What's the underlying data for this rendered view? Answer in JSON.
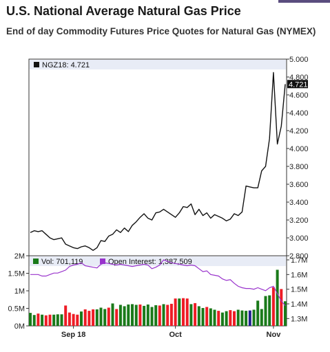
{
  "page": {
    "title": "U.S. National Average Natural Gas Price",
    "subtitle": "End of day Commodity Futures Price Quotes for Natural Gas (NYMEX)"
  },
  "colors": {
    "price_line": "#111111",
    "open_interest_line": "#9933cc",
    "volume_up": "#1a7a1a",
    "volume_down": "#ee1c25",
    "volume_neutral": "#1f1f8f",
    "last_price_badge": "#111111",
    "legend_band": "#e8ecf6",
    "corner_tab": "#5a4d7e"
  },
  "chart_data": [
    {
      "type": "line",
      "legend": "NGZ18: 4.721",
      "last_value_label": "4.721",
      "yaxis_ticks": [
        "5.000",
        "4.800",
        "4.600",
        "4.400",
        "4.200",
        "4.000",
        "3.800",
        "3.600",
        "3.400",
        "3.200",
        "3.000",
        "2.800"
      ],
      "ylim": [
        2.8,
        5.0
      ],
      "series": [
        {
          "values": [
            3.06,
            3.08,
            3.07,
            3.08,
            3.04,
            3.0,
            2.98,
            2.99,
            3.0,
            2.93,
            2.91,
            2.89,
            2.88,
            2.9,
            2.91,
            2.89,
            2.86,
            2.89,
            2.97,
            2.96,
            3.02,
            3.04,
            3.09,
            3.06,
            3.11,
            3.07,
            3.14,
            3.18,
            3.23,
            3.27,
            3.22,
            3.2,
            3.28,
            3.29,
            3.32,
            3.29,
            3.26,
            3.23,
            3.28,
            3.35,
            3.34,
            3.38,
            3.26,
            3.32,
            3.25,
            3.28,
            3.22,
            3.26,
            3.24,
            3.22,
            3.19,
            3.21,
            3.27,
            3.25,
            3.29,
            3.58,
            3.57,
            3.56,
            3.56,
            3.75,
            3.8,
            4.11,
            4.85,
            4.05,
            4.25,
            4.72
          ]
        }
      ]
    },
    {
      "type": "bar",
      "legend_volume": "Vol: 701,119",
      "legend_open_interest": "Open Interest: 1,387,509",
      "left_axis_ticks": [
        "2M",
        "1.5M",
        "1M",
        "0.5M",
        "0M"
      ],
      "right_axis_ticks": [
        "1.7M",
        "1.6M",
        "1.5M",
        "1.4M",
        "1.3M"
      ],
      "x_tick_labels": [
        "Sep 18",
        "Oct",
        "Nov"
      ],
      "volume_ylim": [
        0,
        2000000
      ],
      "open_interest_ylim": [
        1250000,
        1700000
      ],
      "volume": [
        [
          "up",
          370000
        ],
        [
          "up",
          310000
        ],
        [
          "down",
          350000
        ],
        [
          "up",
          320000
        ],
        [
          "down",
          300000
        ],
        [
          "down",
          320000
        ],
        [
          "up",
          320000
        ],
        [
          "up",
          330000
        ],
        [
          "up",
          330000
        ],
        [
          "down",
          580000
        ],
        [
          "down",
          380000
        ],
        [
          "down",
          340000
        ],
        [
          "down",
          320000
        ],
        [
          "up",
          410000
        ],
        [
          "down",
          470000
        ],
        [
          "down",
          430000
        ],
        [
          "down",
          470000
        ],
        [
          "up",
          470000
        ],
        [
          "up",
          520000
        ],
        [
          "up",
          480000
        ],
        [
          "down",
          520000
        ],
        [
          "up",
          640000
        ],
        [
          "down",
          480000
        ],
        [
          "up",
          600000
        ],
        [
          "up",
          560000
        ],
        [
          "up",
          610000
        ],
        [
          "up",
          620000
        ],
        [
          "up",
          600000
        ],
        [
          "down",
          610000
        ],
        [
          "up",
          570000
        ],
        [
          "up",
          610000
        ],
        [
          "up",
          540000
        ],
        [
          "up",
          590000
        ],
        [
          "down",
          580000
        ],
        [
          "up",
          620000
        ],
        [
          "down",
          600000
        ],
        [
          "down",
          630000
        ],
        [
          "down",
          780000
        ],
        [
          "up",
          780000
        ],
        [
          "down",
          790000
        ],
        [
          "down",
          780000
        ],
        [
          "up",
          620000
        ],
        [
          "down",
          650000
        ],
        [
          "up",
          560000
        ],
        [
          "up",
          510000
        ],
        [
          "down",
          540000
        ],
        [
          "up",
          500000
        ],
        [
          "up",
          460000
        ],
        [
          "down",
          430000
        ],
        [
          "up",
          380000
        ],
        [
          "up",
          420000
        ],
        [
          "down",
          450000
        ],
        [
          "down",
          420000
        ],
        [
          "up",
          460000
        ],
        [
          "up",
          440000
        ],
        [
          "up",
          430000
        ],
        [
          "neutral",
          440000
        ],
        [
          "up",
          460000
        ],
        [
          "up",
          720000
        ],
        [
          "up",
          480000
        ],
        [
          "up",
          850000
        ],
        [
          "up",
          870000
        ],
        [
          "down",
          1100000
        ],
        [
          "up",
          1600000
        ],
        [
          "down",
          1050000
        ],
        [
          "up",
          701119
        ]
      ],
      "open_interest": [
        1600000,
        1600000,
        1600000,
        1590000,
        1590000,
        1600000,
        1610000,
        1610000,
        1620000,
        1630000,
        1655000,
        1665000,
        1670000,
        1680000,
        1660000,
        1655000,
        1650000,
        1645000,
        1670000,
        1680000,
        1675000,
        1670000,
        1665000,
        1670000,
        1665000,
        1660000,
        1655000,
        1660000,
        1665000,
        1670000,
        1665000,
        1640000,
        1650000,
        1665000,
        1700000,
        1690000,
        1680000,
        1675000,
        1670000,
        1665000,
        1660000,
        1665000,
        1660000,
        1640000,
        1620000,
        1625000,
        1600000,
        1595000,
        1590000,
        1570000,
        1560000,
        1565000,
        1540000,
        1520000,
        1510000,
        1505000,
        1505000,
        1500000,
        1510000,
        1500000,
        1490000,
        1510000,
        1520000,
        1470000,
        1420000,
        1387509
      ]
    }
  ]
}
